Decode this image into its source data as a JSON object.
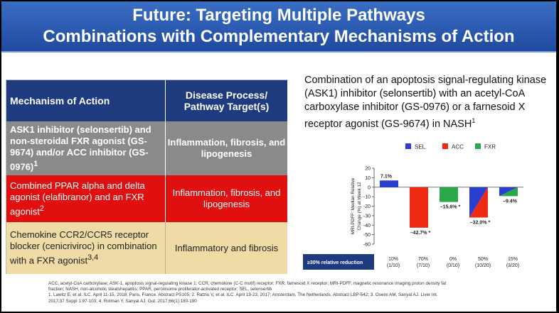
{
  "header": {
    "title_line1": "Future: Targeting Multiple Pathways",
    "title_line2": "Combinations with Complementary Mechanisms of Action"
  },
  "table": {
    "col1_header": "Mechanism of Action",
    "col2_header_line1": "Disease Process/",
    "col2_header_line2": "Pathway Target(s)",
    "rows": [
      {
        "mechanism": "ASK1 inhibitor (selonsertib) and non-steroidal FXR agonist (GS-9674) and/or ACC inhibitor (GS-0976)",
        "mechanism_sup": "1",
        "target": "Inflammation, fibrosis, and lipogenesis"
      },
      {
        "mechanism": "Combined PPAR alpha and delta agonist (elafibranor) and an FXR agonist",
        "mechanism_sup": "2",
        "target": "Inflammation, fibrosis, and lipogenesis"
      },
      {
        "mechanism": "Chemokine CCR2/CCR5 receptor blocker (cenicriviroc) in combination with a FXR agonist",
        "mechanism_sup": "3,4",
        "target": "Inflammatory and fibrosis"
      }
    ]
  },
  "chart_description": "Combination of an apoptosis signal-regulating kinase (ASK1) inhibitor (selonsertib) with an acetyl-CoA carboxylase inhibitor (GS-0976) or a farnesoid X receptor agonist (GS-9674) in NASH",
  "chart_description_sup": "1",
  "colors": {
    "SEL": "#2b3fcf",
    "ACC": "#f02a12",
    "FXR": "#2aa84a",
    "header_blue": "#1f3b80"
  },
  "chart_data": {
    "type": "bar",
    "ylabel": "MRI-PDFF: Median Relative Change (%) at Week 12",
    "ylim": [
      -60,
      20
    ],
    "yticks": [
      20,
      10,
      0,
      -10,
      -20,
      -30,
      -40,
      -50,
      -60
    ],
    "legend": [
      "SEL",
      "ACC",
      "FXR"
    ],
    "legend_position": "top",
    "categories": [
      "SEL",
      "ACC",
      "FXR",
      "SEL + ACC",
      "SEL + FXR"
    ],
    "bars": [
      {
        "label": "SEL",
        "value": 7.1,
        "value_label": "7.1%",
        "colors": [
          "SEL"
        ]
      },
      {
        "label": "ACC",
        "value": -42.7,
        "value_label": "–42.7% *",
        "colors": [
          "ACC"
        ]
      },
      {
        "label": "FXR",
        "value": -15.6,
        "value_label": "–15.6% *",
        "colors": [
          "FXR"
        ]
      },
      {
        "label": "SEL + ACC",
        "value": -32.0,
        "value_label": "–32.0% *",
        "colors": [
          "SEL",
          "ACC"
        ]
      },
      {
        "label": "SEL + FXR",
        "value": -9.4,
        "value_label": "–9.4%",
        "colors": [
          "SEL",
          "FXR"
        ]
      }
    ],
    "reduction_row": {
      "label": "≥30% relative reduction",
      "values": [
        {
          "pct": "10%",
          "frac": "(1/10)"
        },
        {
          "pct": "70%",
          "frac": "(7/10)"
        },
        {
          "pct": "0%",
          "frac": "(0/10)"
        },
        {
          "pct": "50%",
          "frac": "(10/20)"
        },
        {
          "pct": "15%",
          "frac": "(3/20)"
        }
      ]
    }
  },
  "footnotes": [
    "ACC, acetyl-CoA carboxylase; ASK-1, apoptosis signal-regulating kinase 1; CCR, chemokine (C-C motif) receptor; FXR, farnesoid X receptor; MRI-PDFF, magnetic resonance imaging proton density fat",
    "fraction; NASH, non-alcoholic steatohepatitis; PPAR, peroxisome proliferator-activated receptor; SEL, selonsertib",
    "1. Lawitz E, et al. ILC. April 11-15, 2018; Paris, France. Abstract PS105; 2. Ratziu V, et al. ILC. April 19-23, 2017; Amsterdam, The Netherlands. Abstract LBP-542; 3. Oseini AM, Sanyal AJ. Liver Int.",
    "2017;37 Suppl 1:97-103; 4. Rotman Y, Sanyal AJ. Gut. 2017;66(1):180-190"
  ]
}
